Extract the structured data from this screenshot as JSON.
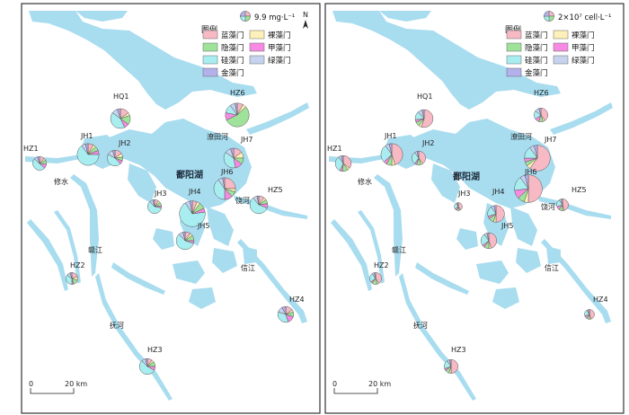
{
  "colors": {
    "water": "#a8dcef",
    "frame": "#333333",
    "divisions": [
      {
        "key": "blue",
        "color": "#f7b9c4"
      },
      {
        "key": "naked",
        "color": "#fdf0b8"
      },
      {
        "key": "crypto",
        "color": "#9fe39b"
      },
      {
        "key": "pyrro",
        "color": "#f78be3"
      },
      {
        "key": "diatom",
        "color": "#a8eef0"
      },
      {
        "key": "green",
        "color": "#c6d3ee"
      },
      {
        "key": "golden",
        "color": "#b4b0ec"
      }
    ]
  },
  "legend": {
    "title": "图例",
    "items": [
      "蓝藻门",
      "裸藻门",
      "隐藻门",
      "甲藻门",
      "硅藻门",
      "绿藻门",
      "金藻门"
    ]
  },
  "maps": [
    {
      "id": "left",
      "scale_label": "9.9 mg·L⁻¹",
      "lake_label": "鄱阳湖",
      "compass_label": "N",
      "scalebar": {
        "start": "0",
        "end": "20 km"
      },
      "place_labels": [
        "修水",
        "赣江",
        "信江",
        "抚河",
        "潦田河",
        "饶河"
      ],
      "sites": [
        {
          "name": "HQ1",
          "size": 1.0,
          "slices": [
            0.15,
            0.05,
            0.15,
            0.08,
            0.42,
            0.1,
            0.05
          ]
        },
        {
          "name": "HZ6",
          "size": 1.2,
          "slices": [
            0.08,
            0.05,
            0.55,
            0.1,
            0.12,
            0.07,
            0.03
          ]
        },
        {
          "name": "JH1",
          "size": 1.1,
          "slices": [
            0.08,
            0.04,
            0.07,
            0.06,
            0.65,
            0.06,
            0.04
          ]
        },
        {
          "name": "JH2",
          "size": 0.8,
          "slices": [
            0.15,
            0.08,
            0.08,
            0.07,
            0.45,
            0.12,
            0.05
          ]
        },
        {
          "name": "HZ1",
          "size": 0.7,
          "slices": [
            0.12,
            0.05,
            0.1,
            0.1,
            0.5,
            0.08,
            0.05
          ]
        },
        {
          "name": "JH7",
          "size": 1.0,
          "slices": [
            0.15,
            0.1,
            0.1,
            0.12,
            0.38,
            0.1,
            0.05
          ]
        },
        {
          "name": "JH6",
          "size": 1.1,
          "slices": [
            0.25,
            0.05,
            0.08,
            0.12,
            0.4,
            0.07,
            0.03
          ]
        },
        {
          "name": "JH3",
          "size": 0.7,
          "slices": [
            0.1,
            0.05,
            0.08,
            0.05,
            0.6,
            0.08,
            0.04
          ]
        },
        {
          "name": "JH4",
          "size": 1.3,
          "slices": [
            0.06,
            0.04,
            0.08,
            0.05,
            0.68,
            0.06,
            0.03
          ]
        },
        {
          "name": "HZ5",
          "size": 0.9,
          "slices": [
            0.1,
            0.05,
            0.08,
            0.08,
            0.58,
            0.08,
            0.03
          ]
        },
        {
          "name": "JH5",
          "size": 0.9,
          "slices": [
            0.1,
            0.05,
            0.1,
            0.05,
            0.58,
            0.08,
            0.04
          ]
        },
        {
          "name": "HZ2",
          "size": 0.6,
          "slices": [
            0.2,
            0.1,
            0.15,
            0.05,
            0.35,
            0.1,
            0.05
          ]
        },
        {
          "name": "HZ4",
          "size": 0.8,
          "slices": [
            0.15,
            0.05,
            0.1,
            0.15,
            0.35,
            0.12,
            0.08
          ]
        },
        {
          "name": "HZ3",
          "size": 0.8,
          "slices": [
            0.1,
            0.05,
            0.1,
            0.08,
            0.55,
            0.08,
            0.04
          ]
        }
      ]
    },
    {
      "id": "right",
      "scale_label": "2×10⁷ cell·L⁻¹",
      "lake_label": "鄱阳湖",
      "compass_label": "",
      "scalebar": {
        "start": "0",
        "end": "20 km"
      },
      "place_labels": [
        "修水",
        "赣江",
        "信江",
        "抚河",
        "潦田河",
        "饶河"
      ],
      "sites": [
        {
          "name": "HQ1",
          "size": 0.9,
          "slices": [
            0.55,
            0.05,
            0.08,
            0.05,
            0.15,
            0.08,
            0.04
          ]
        },
        {
          "name": "HZ6",
          "size": 0.7,
          "slices": [
            0.4,
            0.05,
            0.1,
            0.1,
            0.2,
            0.1,
            0.05
          ]
        },
        {
          "name": "JH1",
          "size": 1.1,
          "slices": [
            0.45,
            0.05,
            0.08,
            0.05,
            0.27,
            0.06,
            0.04
          ]
        },
        {
          "name": "JH2",
          "size": 0.7,
          "slices": [
            0.4,
            0.05,
            0.1,
            0.05,
            0.3,
            0.06,
            0.04
          ]
        },
        {
          "name": "HZ1",
          "size": 0.8,
          "slices": [
            0.35,
            0.05,
            0.12,
            0.05,
            0.33,
            0.06,
            0.04
          ]
        },
        {
          "name": "JH7",
          "size": 1.3,
          "slices": [
            0.6,
            0.05,
            0.05,
            0.05,
            0.15,
            0.06,
            0.04
          ]
        },
        {
          "name": "JH6",
          "size": 1.4,
          "slices": [
            0.5,
            0.05,
            0.08,
            0.1,
            0.17,
            0.06,
            0.04
          ]
        },
        {
          "name": "JH3",
          "size": 0.4,
          "slices": [
            0.4,
            0.05,
            0.1,
            0.1,
            0.25,
            0.06,
            0.04
          ]
        },
        {
          "name": "JH4",
          "size": 0.85,
          "slices": [
            0.5,
            0.05,
            0.1,
            0.05,
            0.2,
            0.06,
            0.04
          ]
        },
        {
          "name": "HZ5",
          "size": 0.6,
          "slices": [
            0.45,
            0.05,
            0.1,
            0.1,
            0.2,
            0.06,
            0.04
          ]
        },
        {
          "name": "JH5",
          "size": 0.8,
          "slices": [
            0.45,
            0.05,
            0.1,
            0.05,
            0.25,
            0.06,
            0.04
          ]
        },
        {
          "name": "HZ2",
          "size": 0.6,
          "slices": [
            0.4,
            0.05,
            0.15,
            0.05,
            0.25,
            0.06,
            0.04
          ]
        },
        {
          "name": "HZ4",
          "size": 0.5,
          "slices": [
            0.45,
            0.05,
            0.1,
            0.1,
            0.2,
            0.06,
            0.04
          ]
        },
        {
          "name": "HZ3",
          "size": 0.7,
          "slices": [
            0.5,
            0.05,
            0.1,
            0.05,
            0.2,
            0.06,
            0.04
          ]
        }
      ]
    }
  ]
}
